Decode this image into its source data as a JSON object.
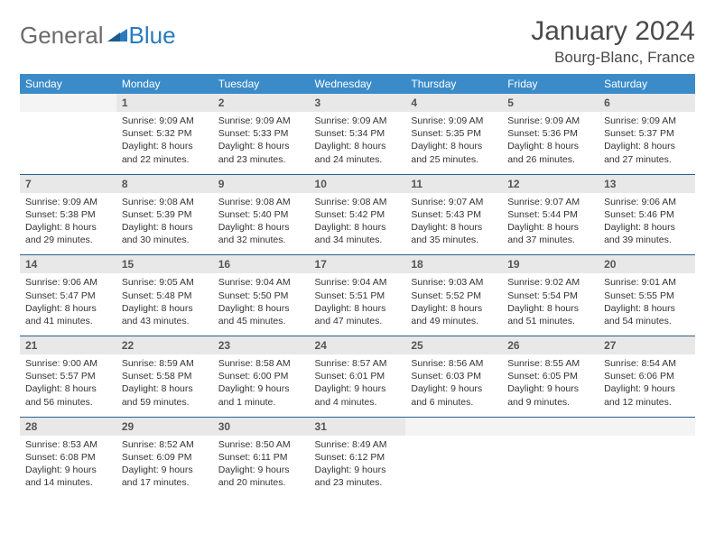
{
  "logo": {
    "general": "General",
    "blue": "Blue"
  },
  "title": "January 2024",
  "location": "Bourg-Blanc, France",
  "colors": {
    "header_bg": "#3b8bc8",
    "header_text": "#ffffff",
    "daynum_bg": "#e8e8e8",
    "daynum_text": "#555555",
    "detail_text": "#333333",
    "rule": "#2a5f8c",
    "logo_gray": "#6b6b6b",
    "logo_blue": "#2a7bbf"
  },
  "day_headers": [
    "Sunday",
    "Monday",
    "Tuesday",
    "Wednesday",
    "Thursday",
    "Friday",
    "Saturday"
  ],
  "weeks": [
    [
      {
        "n": "",
        "sr": "",
        "ss": "",
        "dl": ""
      },
      {
        "n": "1",
        "sr": "Sunrise: 9:09 AM",
        "ss": "Sunset: 5:32 PM",
        "dl": "Daylight: 8 hours and 22 minutes."
      },
      {
        "n": "2",
        "sr": "Sunrise: 9:09 AM",
        "ss": "Sunset: 5:33 PM",
        "dl": "Daylight: 8 hours and 23 minutes."
      },
      {
        "n": "3",
        "sr": "Sunrise: 9:09 AM",
        "ss": "Sunset: 5:34 PM",
        "dl": "Daylight: 8 hours and 24 minutes."
      },
      {
        "n": "4",
        "sr": "Sunrise: 9:09 AM",
        "ss": "Sunset: 5:35 PM",
        "dl": "Daylight: 8 hours and 25 minutes."
      },
      {
        "n": "5",
        "sr": "Sunrise: 9:09 AM",
        "ss": "Sunset: 5:36 PM",
        "dl": "Daylight: 8 hours and 26 minutes."
      },
      {
        "n": "6",
        "sr": "Sunrise: 9:09 AM",
        "ss": "Sunset: 5:37 PM",
        "dl": "Daylight: 8 hours and 27 minutes."
      }
    ],
    [
      {
        "n": "7",
        "sr": "Sunrise: 9:09 AM",
        "ss": "Sunset: 5:38 PM",
        "dl": "Daylight: 8 hours and 29 minutes."
      },
      {
        "n": "8",
        "sr": "Sunrise: 9:08 AM",
        "ss": "Sunset: 5:39 PM",
        "dl": "Daylight: 8 hours and 30 minutes."
      },
      {
        "n": "9",
        "sr": "Sunrise: 9:08 AM",
        "ss": "Sunset: 5:40 PM",
        "dl": "Daylight: 8 hours and 32 minutes."
      },
      {
        "n": "10",
        "sr": "Sunrise: 9:08 AM",
        "ss": "Sunset: 5:42 PM",
        "dl": "Daylight: 8 hours and 34 minutes."
      },
      {
        "n": "11",
        "sr": "Sunrise: 9:07 AM",
        "ss": "Sunset: 5:43 PM",
        "dl": "Daylight: 8 hours and 35 minutes."
      },
      {
        "n": "12",
        "sr": "Sunrise: 9:07 AM",
        "ss": "Sunset: 5:44 PM",
        "dl": "Daylight: 8 hours and 37 minutes."
      },
      {
        "n": "13",
        "sr": "Sunrise: 9:06 AM",
        "ss": "Sunset: 5:46 PM",
        "dl": "Daylight: 8 hours and 39 minutes."
      }
    ],
    [
      {
        "n": "14",
        "sr": "Sunrise: 9:06 AM",
        "ss": "Sunset: 5:47 PM",
        "dl": "Daylight: 8 hours and 41 minutes."
      },
      {
        "n": "15",
        "sr": "Sunrise: 9:05 AM",
        "ss": "Sunset: 5:48 PM",
        "dl": "Daylight: 8 hours and 43 minutes."
      },
      {
        "n": "16",
        "sr": "Sunrise: 9:04 AM",
        "ss": "Sunset: 5:50 PM",
        "dl": "Daylight: 8 hours and 45 minutes."
      },
      {
        "n": "17",
        "sr": "Sunrise: 9:04 AM",
        "ss": "Sunset: 5:51 PM",
        "dl": "Daylight: 8 hours and 47 minutes."
      },
      {
        "n": "18",
        "sr": "Sunrise: 9:03 AM",
        "ss": "Sunset: 5:52 PM",
        "dl": "Daylight: 8 hours and 49 minutes."
      },
      {
        "n": "19",
        "sr": "Sunrise: 9:02 AM",
        "ss": "Sunset: 5:54 PM",
        "dl": "Daylight: 8 hours and 51 minutes."
      },
      {
        "n": "20",
        "sr": "Sunrise: 9:01 AM",
        "ss": "Sunset: 5:55 PM",
        "dl": "Daylight: 8 hours and 54 minutes."
      }
    ],
    [
      {
        "n": "21",
        "sr": "Sunrise: 9:00 AM",
        "ss": "Sunset: 5:57 PM",
        "dl": "Daylight: 8 hours and 56 minutes."
      },
      {
        "n": "22",
        "sr": "Sunrise: 8:59 AM",
        "ss": "Sunset: 5:58 PM",
        "dl": "Daylight: 8 hours and 59 minutes."
      },
      {
        "n": "23",
        "sr": "Sunrise: 8:58 AM",
        "ss": "Sunset: 6:00 PM",
        "dl": "Daylight: 9 hours and 1 minute."
      },
      {
        "n": "24",
        "sr": "Sunrise: 8:57 AM",
        "ss": "Sunset: 6:01 PM",
        "dl": "Daylight: 9 hours and 4 minutes."
      },
      {
        "n": "25",
        "sr": "Sunrise: 8:56 AM",
        "ss": "Sunset: 6:03 PM",
        "dl": "Daylight: 9 hours and 6 minutes."
      },
      {
        "n": "26",
        "sr": "Sunrise: 8:55 AM",
        "ss": "Sunset: 6:05 PM",
        "dl": "Daylight: 9 hours and 9 minutes."
      },
      {
        "n": "27",
        "sr": "Sunrise: 8:54 AM",
        "ss": "Sunset: 6:06 PM",
        "dl": "Daylight: 9 hours and 12 minutes."
      }
    ],
    [
      {
        "n": "28",
        "sr": "Sunrise: 8:53 AM",
        "ss": "Sunset: 6:08 PM",
        "dl": "Daylight: 9 hours and 14 minutes."
      },
      {
        "n": "29",
        "sr": "Sunrise: 8:52 AM",
        "ss": "Sunset: 6:09 PM",
        "dl": "Daylight: 9 hours and 17 minutes."
      },
      {
        "n": "30",
        "sr": "Sunrise: 8:50 AM",
        "ss": "Sunset: 6:11 PM",
        "dl": "Daylight: 9 hours and 20 minutes."
      },
      {
        "n": "31",
        "sr": "Sunrise: 8:49 AM",
        "ss": "Sunset: 6:12 PM",
        "dl": "Daylight: 9 hours and 23 minutes."
      },
      {
        "n": "",
        "sr": "",
        "ss": "",
        "dl": ""
      },
      {
        "n": "",
        "sr": "",
        "ss": "",
        "dl": ""
      },
      {
        "n": "",
        "sr": "",
        "ss": "",
        "dl": ""
      }
    ]
  ]
}
